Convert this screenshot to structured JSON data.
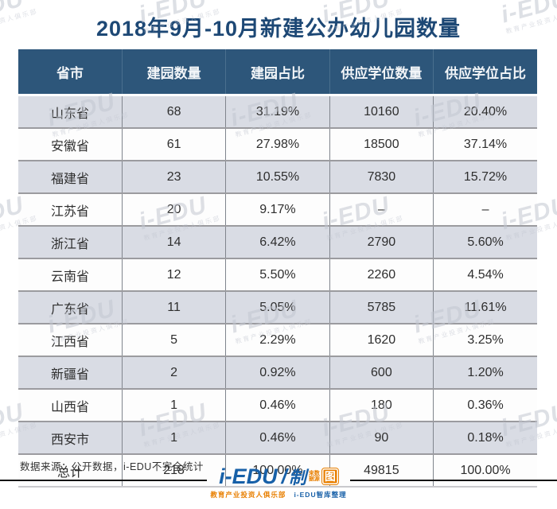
{
  "title": "2018年9月-10月新建公办幼儿园数量",
  "table": {
    "columns": [
      "省市",
      "建园数量",
      "建园占比",
      "供应学位数量",
      "供应学位占比"
    ],
    "rows": [
      [
        "山东省",
        "68",
        "31.19%",
        "10160",
        "20.40%"
      ],
      [
        "安徽省",
        "61",
        "27.98%",
        "18500",
        "37.14%"
      ],
      [
        "福建省",
        "23",
        "10.55%",
        "7830",
        "15.72%"
      ],
      [
        "江苏省",
        "20",
        "9.17%",
        "–",
        "–"
      ],
      [
        "浙江省",
        "14",
        "6.42%",
        "2790",
        "5.60%"
      ],
      [
        "云南省",
        "12",
        "5.50%",
        "2260",
        "4.54%"
      ],
      [
        "广东省",
        "11",
        "5.05%",
        "5785",
        "11.61%"
      ],
      [
        "江西省",
        "5",
        "2.29%",
        "1620",
        "3.25%"
      ],
      [
        "新疆省",
        "2",
        "0.92%",
        "600",
        "1.20%"
      ],
      [
        "山西省",
        "1",
        "0.46%",
        "180",
        "0.36%"
      ],
      [
        "西安市",
        "1",
        "0.46%",
        "90",
        "0.18%"
      ],
      [
        "总计",
        "218",
        "100.00%",
        "49815",
        "100.00%"
      ]
    ]
  },
  "footer": {
    "source_note": "数据来源：公开数据，i-EDU不完全统计"
  },
  "logo": {
    "brand": "i-EDU",
    "slash": "/",
    "mark": "制",
    "small_top": "来数",
    "small_bottom": "据源",
    "boxed": "图",
    "tagline_left": "教育产业投资人俱乐部",
    "tagline_right": "i-EDU智库整理"
  },
  "watermark": {
    "brand": "i-EDU",
    "subtext": "教育产业投资人俱乐部"
  },
  "colors": {
    "header_bg": "#2d567a",
    "title_blue": "#1d4875",
    "row_alt": "#d9dce4",
    "brand_blue": "#1760a8",
    "brand_orange": "#e87f00"
  },
  "chart_data": {
    "type": "table",
    "title": "2018年9月-10月新建公办幼儿园数量",
    "columns": [
      "省市",
      "建园数量",
      "建园占比",
      "供应学位数量",
      "供应学位占比"
    ],
    "categories": [
      "山东省",
      "安徽省",
      "福建省",
      "江苏省",
      "浙江省",
      "云南省",
      "广东省",
      "江西省",
      "新疆省",
      "山西省",
      "西安市",
      "总计"
    ],
    "series": [
      {
        "name": "建园数量",
        "values": [
          68,
          61,
          23,
          20,
          14,
          12,
          11,
          5,
          2,
          1,
          1,
          218
        ]
      },
      {
        "name": "建园占比",
        "values": [
          "31.19%",
          "27.98%",
          "10.55%",
          "9.17%",
          "6.42%",
          "5.50%",
          "5.05%",
          "2.29%",
          "0.92%",
          "0.46%",
          "0.46%",
          "100.00%"
        ]
      },
      {
        "name": "供应学位数量",
        "values": [
          10160,
          18500,
          7830,
          null,
          2790,
          2260,
          5785,
          1620,
          600,
          180,
          90,
          49815
        ]
      },
      {
        "name": "供应学位占比",
        "values": [
          "20.40%",
          "37.14%",
          "15.72%",
          null,
          "5.60%",
          "4.54%",
          "11.61%",
          "3.25%",
          "1.20%",
          "0.36%",
          "0.18%",
          "100.00%"
        ]
      }
    ]
  }
}
